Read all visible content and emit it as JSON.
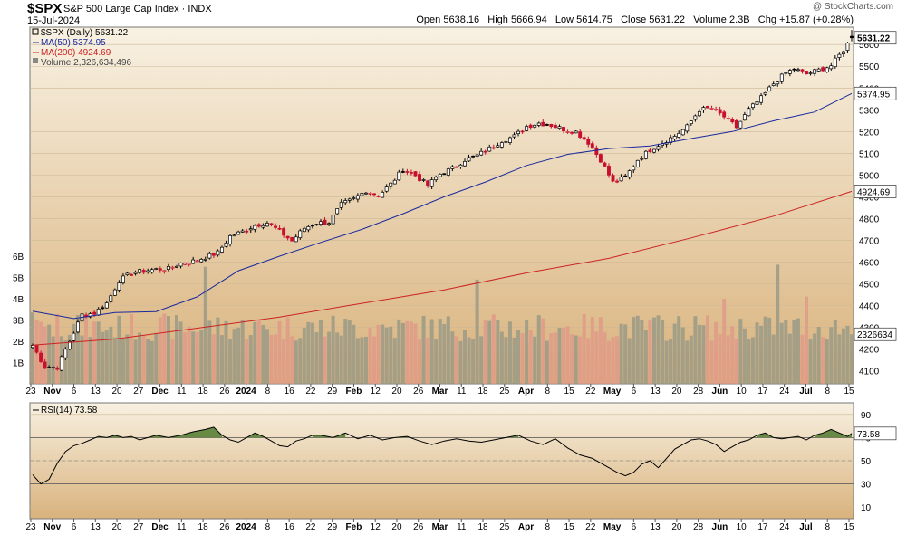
{
  "header": {
    "symbol": "$SPX",
    "name": "S&P 500 Large Cap Index",
    "exchange": "INDX",
    "date": "15-Jul-2024",
    "watermark": "@ StockCharts.com",
    "open_label": "Open",
    "open": "5638.16",
    "high_label": "High",
    "high": "5666.94",
    "low_label": "Low",
    "low": "5614.75",
    "close_label": "Close",
    "close": "5631.22",
    "volume_label": "Volume",
    "volume": "2.3B",
    "chg_label": "Chg",
    "chg": "+15.87 (+0.28%)"
  },
  "legend": {
    "price": "$SPX (Daily) 5631.22",
    "ma50": "MA(50) 5374.95",
    "ma200": "MA(200) 4924.69",
    "volume": "Volume 2,326,634,496",
    "rsi": "RSI(14) 73.58"
  },
  "colors": {
    "up": "#000000",
    "down": "#c8102e",
    "ma50": "#1a2a9e",
    "ma200": "#cc2222",
    "volume_up": "#9a9a86",
    "volume_down": "#e09a88",
    "rsi_line": "#000000",
    "rsi_fill": "#4f7a2e",
    "panel_top": "#f7efdf",
    "panel_bottom": "#d8ad74"
  },
  "chart_data": [
    {
      "type": "candlestick",
      "title": "$SPX (Daily) 5631.22",
      "ylim": [
        4040,
        5680
      ],
      "y_ticks": [
        4100,
        4200,
        4300,
        4400,
        4500,
        4600,
        4700,
        4800,
        4900,
        5000,
        5100,
        5200,
        5300,
        5400,
        5500,
        5600
      ],
      "y_tick_labels": [
        "4100",
        "4200",
        "4300",
        "4400",
        "4500",
        "4600",
        "4700",
        "4800",
        "4900",
        "5000",
        "5100",
        "5200",
        "5300",
        "5400",
        "5500",
        "5600"
      ],
      "x_tick_labels": [
        "23",
        "Nov",
        "6",
        "13",
        "20",
        "27",
        "Dec",
        "11",
        "18",
        "26",
        "2024",
        "8",
        "16",
        "22",
        "29",
        "Feb",
        "12",
        "20",
        "26",
        "Mar",
        "11",
        "18",
        "25",
        "Apr",
        "8",
        "15",
        "22",
        "May",
        "6",
        "13",
        "20",
        "28",
        "Jun",
        "10",
        "17",
        "24",
        "Jul",
        "8",
        "15"
      ],
      "n_days": 185,
      "close_path": [
        [
          0,
          4217
        ],
        [
          3,
          4117
        ],
        [
          6,
          4117
        ],
        [
          9,
          4237
        ],
        [
          12,
          4358
        ],
        [
          15,
          4365
        ],
        [
          18,
          4411
        ],
        [
          21,
          4514
        ],
        [
          24,
          4550
        ],
        [
          27,
          4559
        ],
        [
          30,
          4567
        ],
        [
          33,
          4569
        ],
        [
          36,
          4594
        ],
        [
          39,
          4604
        ],
        [
          42,
          4622
        ],
        [
          45,
          4643
        ],
        [
          48,
          4719
        ],
        [
          51,
          4740
        ],
        [
          54,
          4769
        ],
        [
          57,
          4781
        ],
        [
          60,
          4742
        ],
        [
          63,
          4697
        ],
        [
          66,
          4756
        ],
        [
          69,
          4780
        ],
        [
          72,
          4783
        ],
        [
          75,
          4865
        ],
        [
          78,
          4890
        ],
        [
          81,
          4928
        ],
        [
          84,
          4906
        ],
        [
          87,
          4958
        ],
        [
          90,
          5026
        ],
        [
          93,
          4998
        ],
        [
          96,
          4953
        ],
        [
          99,
          5005
        ],
        [
          102,
          5030
        ],
        [
          105,
          5070
        ],
        [
          108,
          5090
        ],
        [
          111,
          5122
        ],
        [
          114,
          5158
        ],
        [
          117,
          5178
        ],
        [
          120,
          5224
        ],
        [
          123,
          5239
        ],
        [
          126,
          5229
        ],
        [
          129,
          5211
        ],
        [
          132,
          5199
        ],
        [
          135,
          5150
        ],
        [
          138,
          5070
        ],
        [
          141,
          4967
        ],
        [
          144,
          4990
        ],
        [
          147,
          5070
        ],
        [
          150,
          5116
        ],
        [
          153,
          5150
        ],
        [
          156,
          5180
        ],
        [
          159,
          5222
        ],
        [
          162,
          5300
        ],
        [
          165,
          5308
        ],
        [
          168,
          5268
        ],
        [
          171,
          5220
        ],
        [
          174,
          5300
        ],
        [
          177,
          5354
        ],
        [
          180,
          5420
        ],
        [
          183,
          5470
        ],
        [
          185,
          5487
        ],
        [
          188,
          5465
        ],
        [
          191,
          5483
        ],
        [
          194,
          5503
        ],
        [
          197,
          5575
        ],
        [
          199,
          5631
        ]
      ],
      "ma50": [
        [
          0,
          4374
        ],
        [
          10,
          4340
        ],
        [
          20,
          4368
        ],
        [
          30,
          4372
        ],
        [
          40,
          4440
        ],
        [
          50,
          4560
        ],
        [
          60,
          4627
        ],
        [
          70,
          4690
        ],
        [
          80,
          4750
        ],
        [
          90,
          4822
        ],
        [
          100,
          4900
        ],
        [
          110,
          4968
        ],
        [
          120,
          5044
        ],
        [
          130,
          5095
        ],
        [
          140,
          5122
        ],
        [
          150,
          5134
        ],
        [
          160,
          5168
        ],
        [
          170,
          5200
        ],
        [
          180,
          5249
        ],
        [
          190,
          5290
        ],
        [
          199,
          5375
        ]
      ],
      "ma200": [
        [
          0,
          4218
        ],
        [
          20,
          4246
        ],
        [
          40,
          4296
        ],
        [
          60,
          4347
        ],
        [
          80,
          4410
        ],
        [
          100,
          4472
        ],
        [
          120,
          4550
        ],
        [
          140,
          4617
        ],
        [
          160,
          4711
        ],
        [
          180,
          4811
        ],
        [
          199,
          4925
        ]
      ],
      "last_price_label": "5631.22",
      "ma50_label": "5374.95",
      "ma200_label": "4924.69"
    },
    {
      "type": "bar",
      "title": "Volume 2,326,634,496",
      "y_tick_labels": [
        "1B",
        "2B",
        "3B",
        "4B",
        "5B",
        "6B"
      ],
      "y_ticks": [
        1,
        2,
        3,
        4,
        5,
        6
      ],
      "unit": "B",
      "spikes": [
        [
          42,
          5.5
        ],
        [
          108,
          4.9
        ],
        [
          168,
          4.0
        ],
        [
          181,
          5.6
        ],
        [
          188,
          4.1
        ]
      ],
      "last_label": "2326634",
      "last_value": 2.33
    },
    {
      "type": "line",
      "title": "RSI(14) 73.58",
      "ylim": [
        0,
        100
      ],
      "y_ticks": [
        10,
        30,
        50,
        70,
        90
      ],
      "y_tick_labels": [
        "10",
        "30",
        "50",
        "70",
        "90"
      ],
      "reference_lines": [
        70,
        30
      ],
      "overbought": 70,
      "values": [
        [
          0,
          38
        ],
        [
          2,
          30
        ],
        [
          4,
          34
        ],
        [
          6,
          48
        ],
        [
          8,
          58
        ],
        [
          10,
          63
        ],
        [
          12,
          65
        ],
        [
          14,
          68
        ],
        [
          16,
          71
        ],
        [
          18,
          70
        ],
        [
          20,
          72
        ],
        [
          22,
          70
        ],
        [
          24,
          71
        ],
        [
          26,
          68
        ],
        [
          28,
          70
        ],
        [
          30,
          72
        ],
        [
          33,
          70
        ],
        [
          36,
          72
        ],
        [
          39,
          75
        ],
        [
          42,
          77
        ],
        [
          44,
          79
        ],
        [
          46,
          72
        ],
        [
          48,
          68
        ],
        [
          50,
          66
        ],
        [
          52,
          70
        ],
        [
          54,
          74
        ],
        [
          56,
          71
        ],
        [
          58,
          67
        ],
        [
          60,
          63
        ],
        [
          62,
          62
        ],
        [
          64,
          67
        ],
        [
          66,
          69
        ],
        [
          68,
          72
        ],
        [
          70,
          72
        ],
        [
          73,
          70
        ],
        [
          76,
          74
        ],
        [
          79,
          69
        ],
        [
          82,
          72
        ],
        [
          85,
          68
        ],
        [
          88,
          70
        ],
        [
          91,
          71
        ],
        [
          94,
          67
        ],
        [
          97,
          64
        ],
        [
          100,
          67
        ],
        [
          103,
          69
        ],
        [
          106,
          67
        ],
        [
          109,
          66
        ],
        [
          112,
          68
        ],
        [
          115,
          70
        ],
        [
          118,
          72
        ],
        [
          121,
          67
        ],
        [
          124,
          64
        ],
        [
          127,
          69
        ],
        [
          130,
          61
        ],
        [
          133,
          55
        ],
        [
          136,
          52
        ],
        [
          139,
          46
        ],
        [
          142,
          40
        ],
        [
          144,
          37
        ],
        [
          146,
          40
        ],
        [
          148,
          47
        ],
        [
          150,
          50
        ],
        [
          152,
          44
        ],
        [
          154,
          52
        ],
        [
          156,
          60
        ],
        [
          158,
          64
        ],
        [
          160,
          68
        ],
        [
          162,
          69
        ],
        [
          164,
          67
        ],
        [
          166,
          64
        ],
        [
          168,
          58
        ],
        [
          170,
          62
        ],
        [
          172,
          66
        ],
        [
          174,
          68
        ],
        [
          176,
          72
        ],
        [
          178,
          74
        ],
        [
          180,
          70
        ],
        [
          182,
          69
        ],
        [
          184,
          70
        ],
        [
          186,
          71
        ],
        [
          188,
          68
        ],
        [
          190,
          72
        ],
        [
          192,
          74
        ],
        [
          194,
          77
        ],
        [
          196,
          74
        ],
        [
          198,
          71
        ],
        [
          199,
          73.58
        ]
      ],
      "last_label": "73.58"
    }
  ]
}
